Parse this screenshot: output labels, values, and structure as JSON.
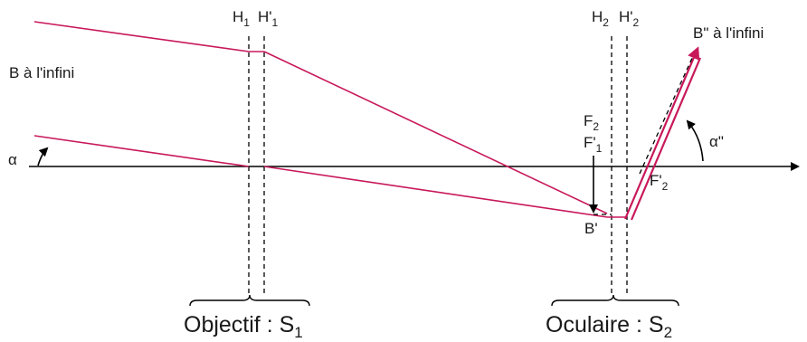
{
  "colors": {
    "ray": "#c8185a",
    "axis": "#000000",
    "text": "#1a1a1a"
  },
  "labels": {
    "h1": {
      "main": "H",
      "sub": "1"
    },
    "h1p": {
      "main": "H'",
      "sub": "1"
    },
    "h2": {
      "main": "H",
      "sub": "2"
    },
    "h2p": {
      "main": "H'",
      "sub": "2"
    },
    "f2": {
      "main": "F",
      "sub": "2"
    },
    "f1p": {
      "main": "F'",
      "sub": "1"
    },
    "f2p": {
      "main": "F'",
      "sub": "2"
    },
    "b_infini": "B à l'infini",
    "bpp_infini": "B\" à l'infini",
    "alpha": "α",
    "alpha_pp": "α\"",
    "b_prime": "B'",
    "objectif": {
      "text": "Objectif : S",
      "sub": "1"
    },
    "oculaire": {
      "text": "Oculaire : S",
      "sub": "2"
    }
  }
}
